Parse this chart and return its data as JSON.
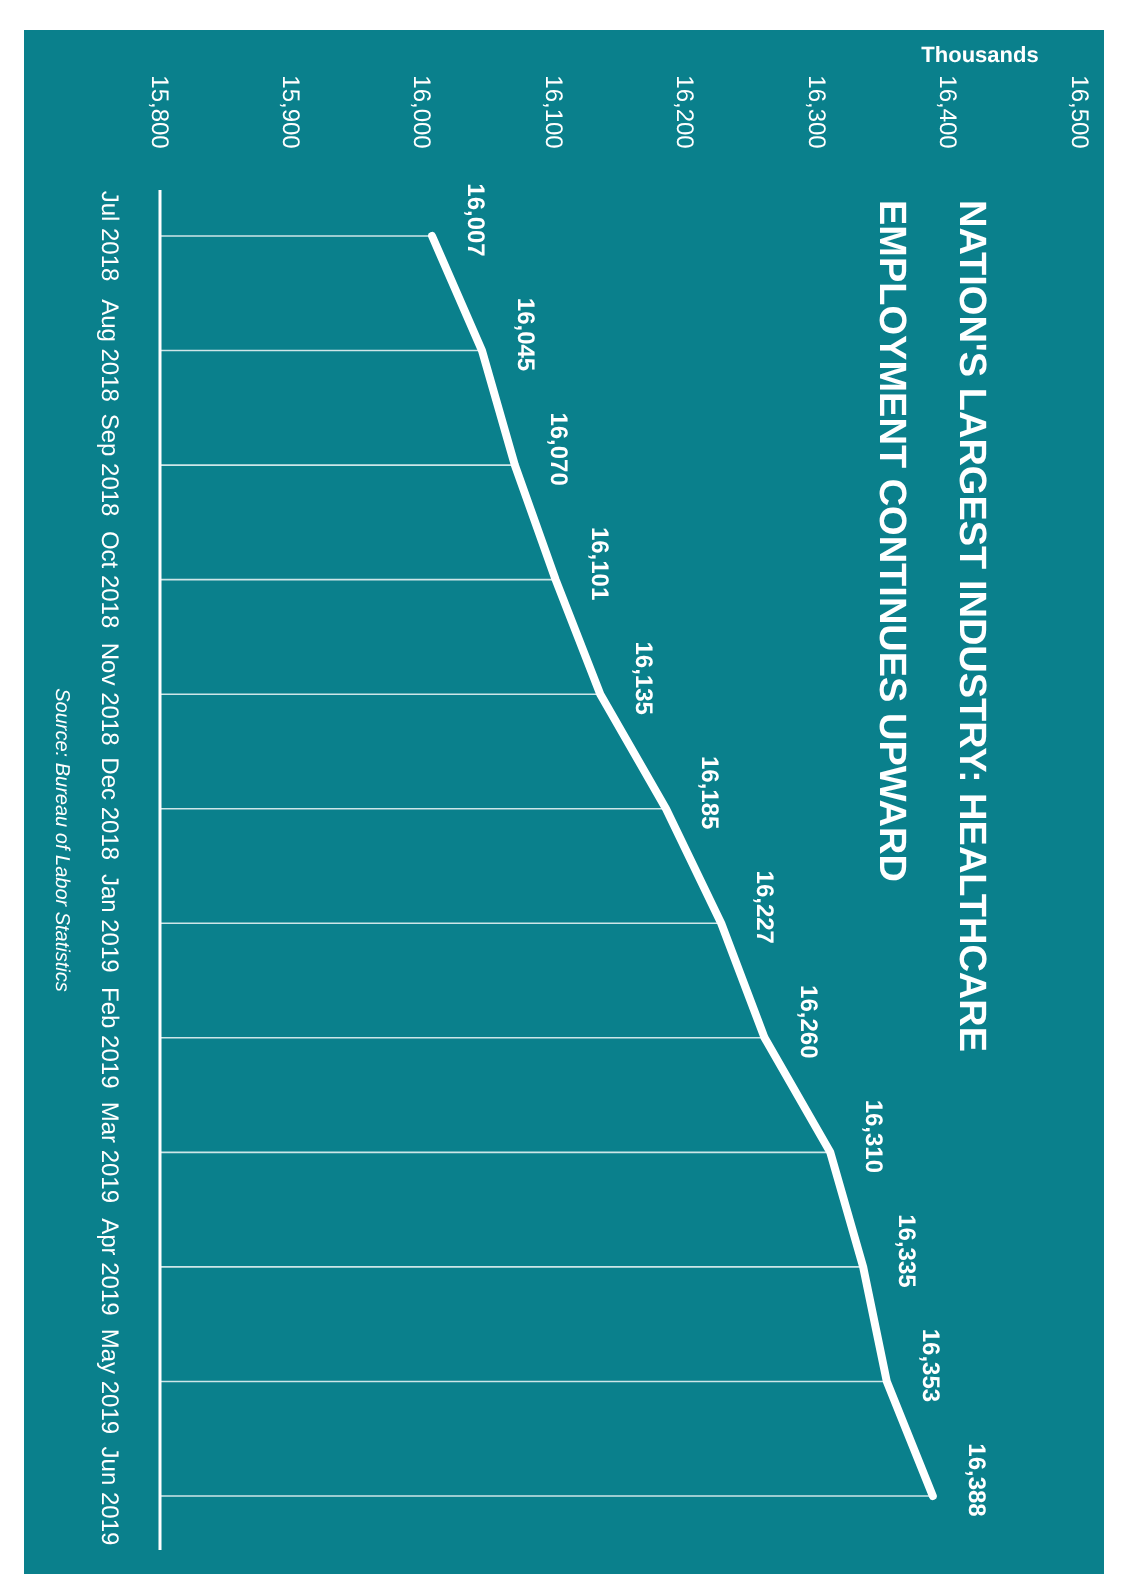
{
  "chart_data": {
    "type": "line",
    "orientation": "horizontal",
    "title": "NATION'S LARGEST INDUSTRY: HEALTHCARE EMPLOYMENT CONTINUES UPWARD",
    "xlabel": "Thousands",
    "annotations": [
      "Source: Bureau of Labor Statistics"
    ],
    "categories": [
      "Jul 2018",
      "Aug 2018",
      "Sep 2018",
      "Oct 2018",
      "Nov 2018",
      "Dec 2018",
      "Jan 2019",
      "Feb 2019",
      "Mar 2019",
      "Apr 2019",
      "May 2019",
      "Jun 2019"
    ],
    "series": [
      {
        "color": "#ffffff",
        "values": [
          16007,
          16045,
          16070,
          16101,
          16135,
          16185,
          16227,
          16260,
          16310,
          16335,
          16353,
          16388
        ],
        "value_labels": [
          "16,007",
          "16,045",
          "16,070",
          "16,101",
          "16,135",
          "16,185",
          "16,227",
          "16,260",
          "16,310",
          "16,335",
          "16,353",
          "16,388"
        ]
      }
    ],
    "xlim": [
      15800,
      16500
    ],
    "xticks": [
      {
        "value": 15800,
        "label": "15,800"
      },
      {
        "value": 15900,
        "label": "15,900"
      },
      {
        "value": 16000,
        "label": "16,000"
      },
      {
        "value": 16100,
        "label": "16,100"
      },
      {
        "value": 16200,
        "label": "16,200"
      },
      {
        "value": 16300,
        "label": "16,300"
      },
      {
        "value": 16400,
        "label": "16,400"
      },
      {
        "value": 16500,
        "label": "16,500"
      }
    ],
    "grid": "y"
  }
}
